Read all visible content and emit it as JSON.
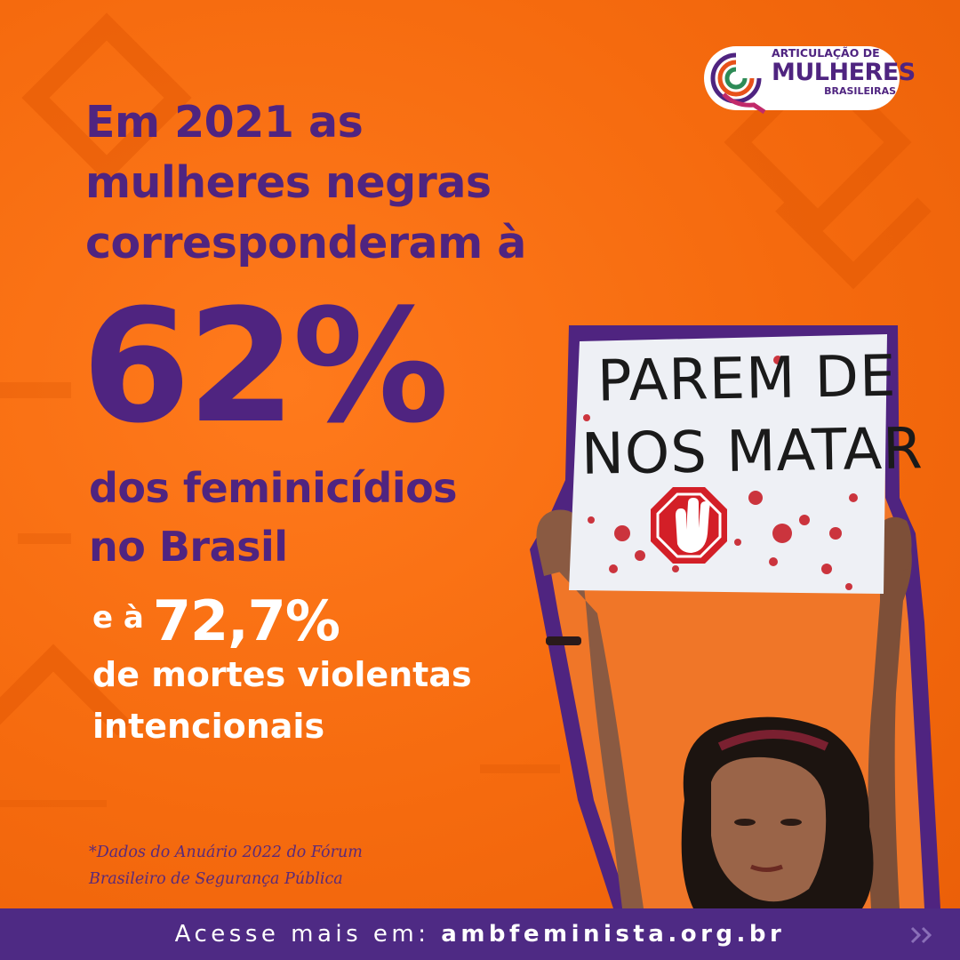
{
  "headline": {
    "lines": [
      "Em 2021 as",
      "mulheres negras",
      "corresponderam à"
    ]
  },
  "big_stat": "62%",
  "subline": {
    "lines": [
      "dos feminicídios",
      "no Brasil"
    ]
  },
  "second_stat": {
    "prefix": "e à",
    "value": "72,7%",
    "lines": [
      "de mortes violentas",
      "intencionais"
    ]
  },
  "footnote": {
    "lines": [
      "*Dados do Anuário 2022 do Fórum",
      "Brasileiro de Segurança Pública"
    ]
  },
  "logo": {
    "line1": "ARTICULAÇÃO DE",
    "line2": "MULHERES",
    "line3": "BRASILEIRAS"
  },
  "sign": {
    "line1": "PAREM DE",
    "line2": "NOS MATAR"
  },
  "bottom_bar": {
    "prefix": "Acesse mais em:",
    "url": "ambfeminista.org.br",
    "arrow_icon": "double-chevron-right-icon"
  },
  "colors": {
    "background": "#f56a0e",
    "purple": "#4f2480",
    "bar": "#4e2a84",
    "white": "#ffffff"
  }
}
